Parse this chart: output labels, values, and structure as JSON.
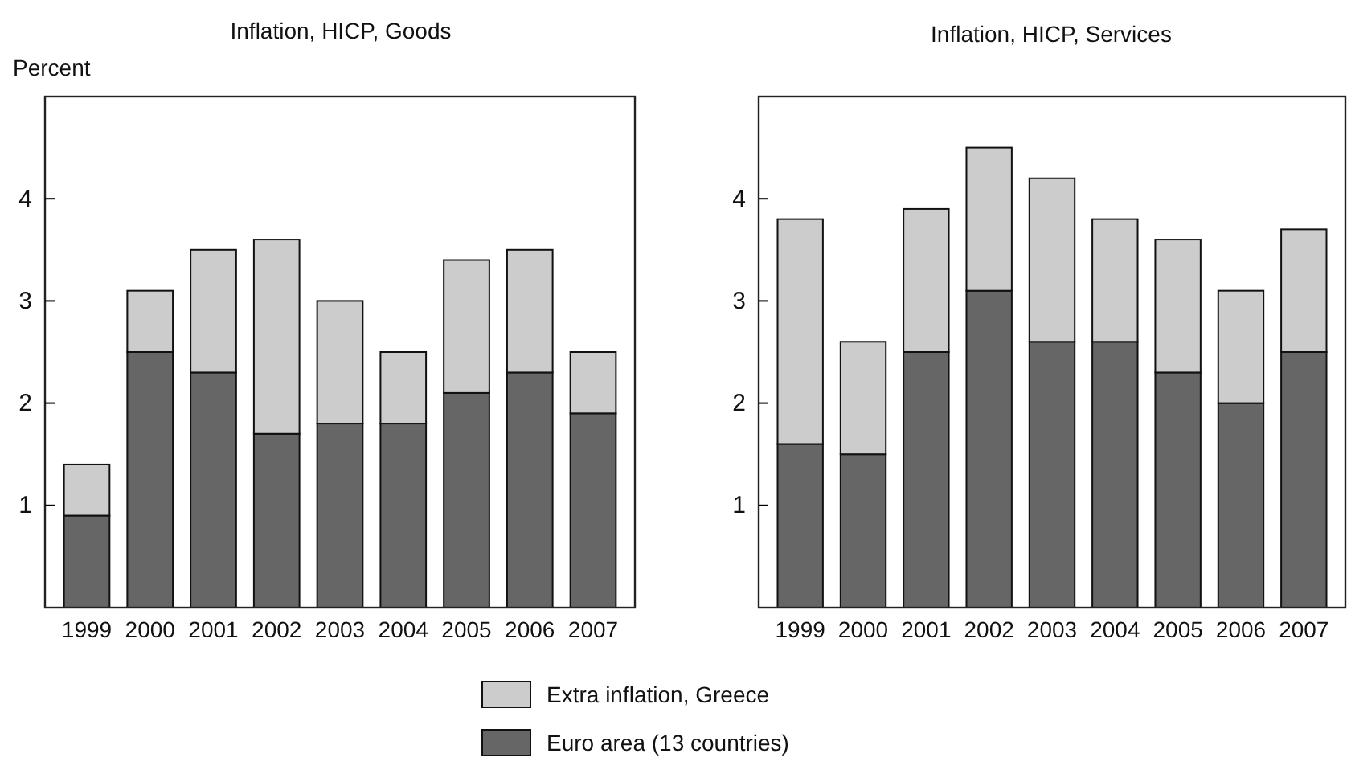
{
  "chart_data": [
    {
      "type": "bar",
      "title": "Inflation, HICP, Goods",
      "ylabel": "Percent",
      "stacked": true,
      "legend": "bottom",
      "grid": false,
      "categories": [
        "1999",
        "2000",
        "2001",
        "2002",
        "2003",
        "2004",
        "2005",
        "2006",
        "2007"
      ],
      "series": [
        {
          "name": "Euro area (13 countries)",
          "color": "#666666",
          "values": [
            0.9,
            2.5,
            2.3,
            1.7,
            1.8,
            1.8,
            2.1,
            2.3,
            1.9
          ]
        },
        {
          "name": "Extra inflation, Greece",
          "color": "#cccccc",
          "values": [
            0.5,
            0.6,
            1.2,
            1.9,
            1.2,
            0.7,
            1.3,
            1.2,
            0.6
          ]
        }
      ],
      "ylim": [
        0,
        5
      ],
      "yticks": [
        1,
        2,
        3,
        4
      ]
    },
    {
      "type": "bar",
      "title": "Inflation, HICP, Services",
      "stacked": true,
      "grid": false,
      "categories": [
        "1999",
        "2000",
        "2001",
        "2002",
        "2003",
        "2004",
        "2005",
        "2006",
        "2007"
      ],
      "series": [
        {
          "color": "#666666",
          "values": [
            1.6,
            1.5,
            2.5,
            3.1,
            2.6,
            2.6,
            2.3,
            2.0,
            2.5
          ]
        },
        {
          "color": "#cccccc",
          "values": [
            2.2,
            1.1,
            1.4,
            1.4,
            1.6,
            1.2,
            1.3,
            1.1,
            1.2
          ]
        }
      ],
      "ylim": [
        0,
        5
      ],
      "yticks": [
        1,
        2,
        3,
        4
      ]
    }
  ]
}
